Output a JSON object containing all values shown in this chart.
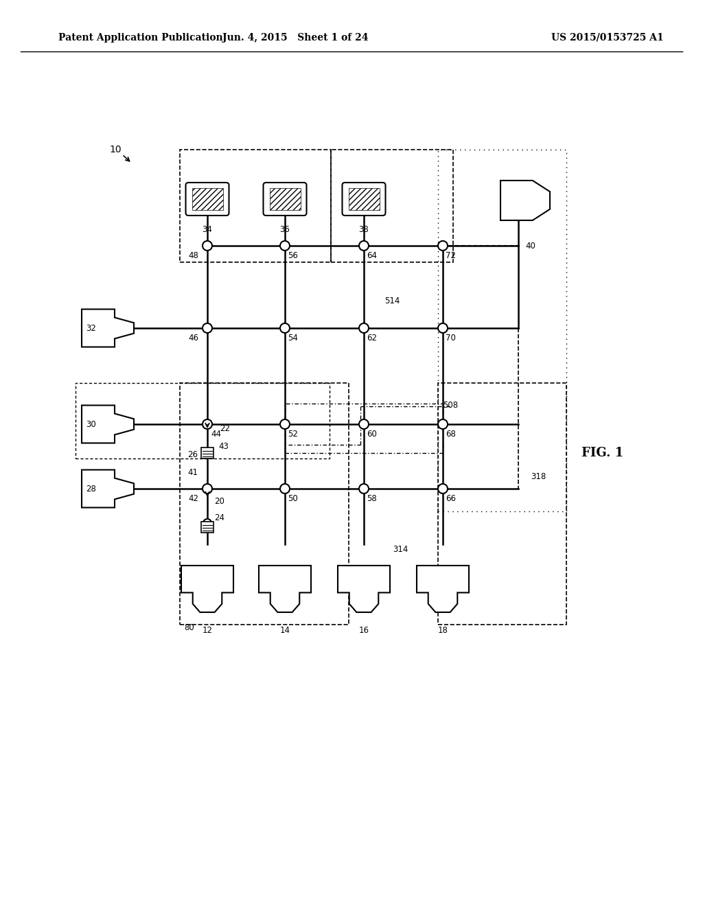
{
  "header_left": "Patent Application Publication",
  "header_mid": "Jun. 4, 2015   Sheet 1 of 24",
  "header_right": "US 2015/0153725 A1",
  "fig_label": "FIG. 1",
  "background": "#ffffff"
}
